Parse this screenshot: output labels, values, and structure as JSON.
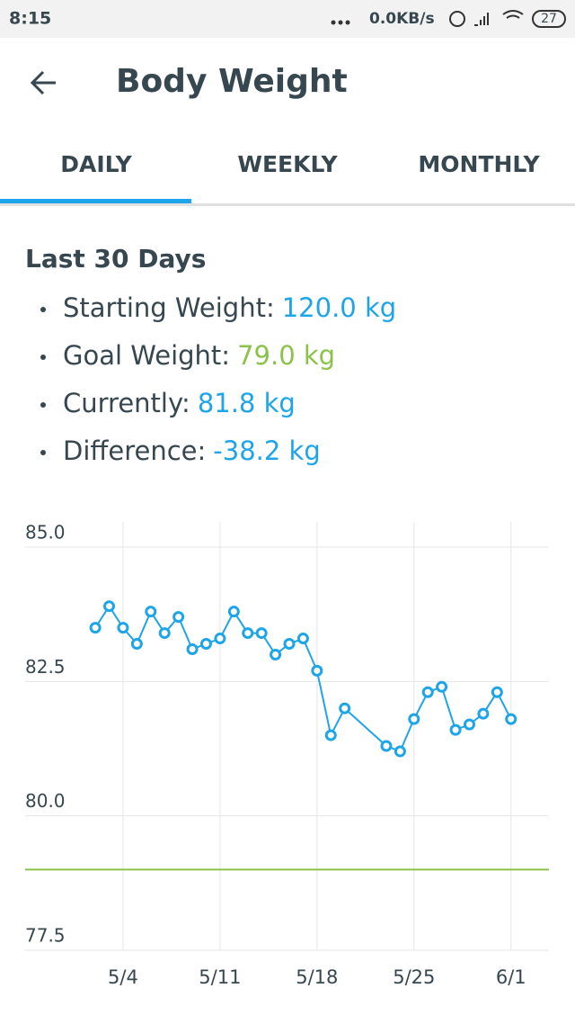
{
  "status_bar": {
    "time": "8:15",
    "network": "0.0KB/s",
    "battery": "27"
  },
  "header": {
    "title": "Body Weight"
  },
  "tabs": [
    "DAILY",
    "WEEKLY",
    "MONTHLY"
  ],
  "summary": {
    "heading": "Last 30 Days",
    "items": [
      {
        "label": "Starting Weight:",
        "value": "120.0 kg"
      },
      {
        "label": "Goal Weight:",
        "value": "79.0 kg"
      },
      {
        "label": "Currently:",
        "value": "81.8 kg"
      },
      {
        "label": "Difference:",
        "value": "-38.2 kg"
      }
    ]
  },
  "chart_data": {
    "type": "line",
    "x": [
      "5/2",
      "5/3",
      "5/4",
      "5/5",
      "5/6",
      "5/7",
      "5/8",
      "5/9",
      "5/10",
      "5/11",
      "5/12",
      "5/13",
      "5/14",
      "5/15",
      "5/16",
      "5/17",
      "5/18",
      "5/19",
      "5/20",
      "5/23",
      "5/24",
      "5/25",
      "5/26",
      "5/27",
      "5/28",
      "5/29",
      "5/30",
      "5/31",
      "6/1"
    ],
    "series": [
      {
        "color": "#1ea5e9",
        "values": [
          83.5,
          83.9,
          83.5,
          83.2,
          83.8,
          83.4,
          83.7,
          83.1,
          83.2,
          83.3,
          83.8,
          83.4,
          83.4,
          83.0,
          83.2,
          83.3,
          82.7,
          81.5,
          82.0,
          81.3,
          81.2,
          81.8,
          82.3,
          82.4,
          81.6,
          81.7,
          81.9,
          82.3,
          81.8
        ]
      }
    ],
    "goal_line": {
      "value": 79.0,
      "color": "#8bc34a"
    },
    "xlim": [
      "4/27",
      "6/4"
    ],
    "xticks": [
      "5/4",
      "5/11",
      "5/18",
      "5/25",
      "6/1"
    ],
    "ylim": [
      77.5,
      85.0
    ],
    "yticks": [
      77.5,
      {
        "value": 80,
        "label": "80.0"
      },
      82.5,
      {
        "value": 85,
        "label": "85.0"
      }
    ],
    "grid": true
  }
}
